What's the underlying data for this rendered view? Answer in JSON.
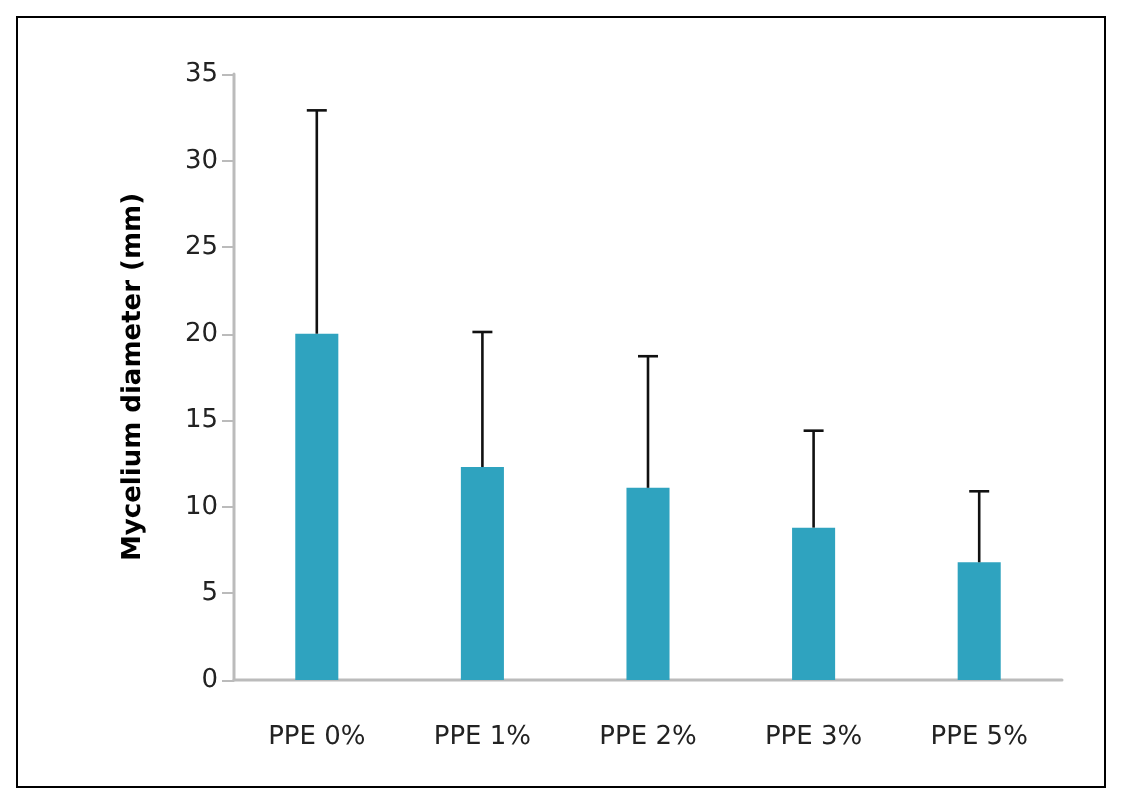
{
  "chart_data": {
    "type": "bar",
    "ylabel": "Mycelium diameter (mm)",
    "categories": [
      "PPE 0%",
      "PPE 1%",
      "PPE 2%",
      "PPE 3%",
      "PPE 5%"
    ],
    "values": [
      20,
      12.3,
      11.1,
      8.8,
      6.8
    ],
    "errors": [
      [
        20,
        32.9
      ],
      [
        12.3,
        20.1
      ],
      [
        11.1,
        18.7
      ],
      [
        8.8,
        14.4
      ],
      [
        6.8,
        10.9
      ]
    ],
    "color": "#2fa3bf",
    "ylim": [
      0,
      35
    ],
    "yticks": [
      0,
      5,
      10,
      15,
      20,
      25,
      30,
      35
    ],
    "grid": false
  }
}
